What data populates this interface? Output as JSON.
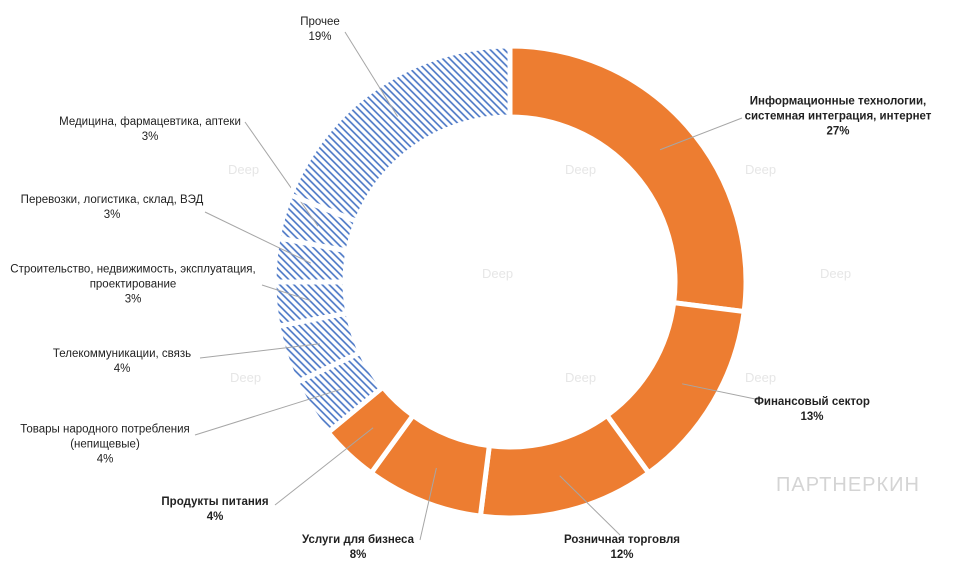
{
  "chart_data": {
    "type": "donut",
    "categories": [
      "Информационные технологии, системная интеграция, интернет",
      "Финансовый сектор",
      "Розничная торговля",
      "Услуги для бизнеса",
      "Продукты питания",
      "Товары народного потребления (непищевые)",
      "Телекоммуникации, связь",
      "Строительство, недвижимость, эксплуатация, проектирование",
      "Перевозки, логистика, склад, ВЭД",
      "Медицина, фармацевтика, аптеки",
      "Прочее"
    ],
    "values": [
      27,
      13,
      12,
      8,
      4,
      4,
      4,
      3,
      3,
      3,
      19
    ],
    "value_labels": [
      "27%",
      "13%",
      "12%",
      "8%",
      "4%",
      "4%",
      "4%",
      "3%",
      "3%",
      "3%",
      "19%"
    ],
    "colors": [
      "#ED7D31",
      "#ED7D31",
      "#ED7D31",
      "#ED7D31",
      "#ED7D31",
      "#4472C4",
      "#4472C4",
      "#4472C4",
      "#4472C4",
      "#4472C4",
      "#4472C4"
    ],
    "patterns": [
      "solid",
      "solid",
      "solid",
      "solid",
      "solid",
      "hatch",
      "hatch",
      "hatch",
      "hatch",
      "hatch",
      "hatch"
    ],
    "watermarks": [
      "Deep",
      "ПАРТНЕРКИН"
    ]
  }
}
